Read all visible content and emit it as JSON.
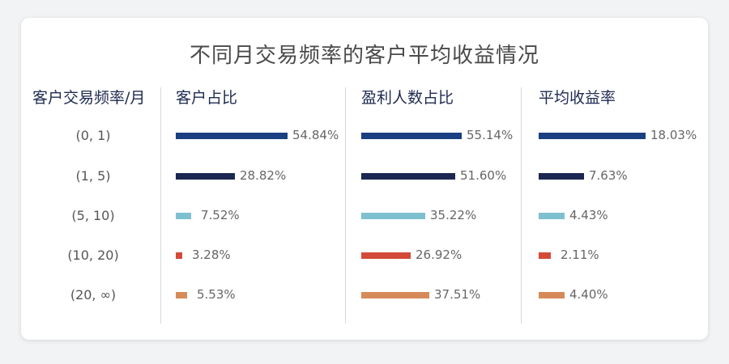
{
  "chart_data": {
    "type": "bar",
    "title": "不同月交易频率的客户平均收益情况",
    "row_header": "客户交易频率/月",
    "categories": [
      "(0, 1)",
      "(1, 5)",
      "(5, 10)",
      "(10, 20)",
      "(20, ∞)"
    ],
    "colors": [
      "#1a3f82",
      "#1c2752",
      "#7ec0d0",
      "#d34a38",
      "#d68b58"
    ],
    "series": [
      {
        "name": "客户占比",
        "values": [
          54.84,
          28.82,
          7.52,
          3.28,
          5.53
        ],
        "labels": [
          "54.84%",
          "28.82%",
          "7.52%",
          "3.28%",
          "5.53%"
        ]
      },
      {
        "name": "盈利人数占比",
        "values": [
          55.14,
          51.6,
          35.22,
          26.92,
          37.51
        ],
        "labels": [
          "55.14%",
          "51.60%",
          "35.22%",
          "26.92%",
          "37.51%"
        ]
      },
      {
        "name": "平均收益率",
        "values": [
          18.03,
          7.63,
          4.43,
          2.11,
          4.4
        ],
        "labels": [
          "18.03%",
          "7.63%",
          "4.43%",
          "2.11%",
          "4.40%"
        ]
      }
    ]
  }
}
